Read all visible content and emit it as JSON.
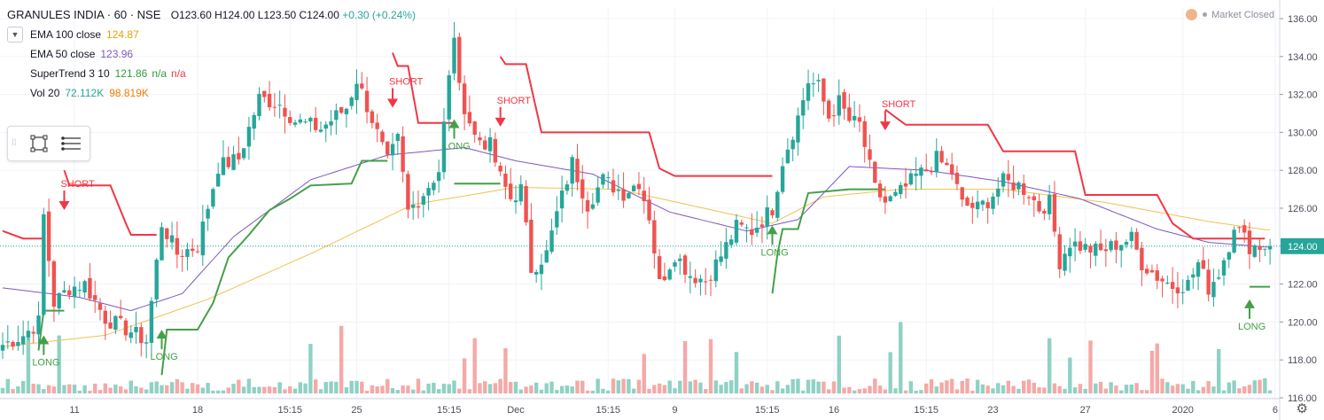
{
  "header": {
    "symbol": "GRANULES INDIA · 60 · NSE",
    "ohlc": "O123.60  H124.00  L123.50  C124.00",
    "change": "+0.30 (+0.24%)"
  },
  "indicators": [
    {
      "name": "EMA 100 close",
      "value": "124.87",
      "color": "#e5a400"
    },
    {
      "name": "EMA 50 close",
      "value": "123.96",
      "color": "#7e57c2"
    },
    {
      "name": "SuperTrend 3 10",
      "value": "121.86",
      "extra": "n/a",
      "extra2": "n/a",
      "color": "#2e9d3a",
      "color2": "#f23645"
    },
    {
      "name": "Vol 20",
      "value": "72.112K",
      "value2": "98.819K",
      "color": "#26a69a",
      "color2": "#f57c00"
    }
  ],
  "market_status": "Market Closed",
  "colors": {
    "up": "#26a69a",
    "down": "#ef5350",
    "st_up": "#43a047",
    "st_down": "#f23645",
    "ema100": "#f2c14e",
    "ema50": "#7e57c2",
    "vol_up": "#8fd1c5",
    "vol_down": "#f5a9a7"
  },
  "chart_data": {
    "type": "candlestick",
    "y_ticks": [
      "116.00",
      "118.00",
      "120.00",
      "122.00",
      "124.00",
      "126.00",
      "128.00",
      "130.00",
      "132.00",
      "134.00",
      "136.00"
    ],
    "ylim": [
      116,
      136.5
    ],
    "x_ticks": [
      {
        "label": "11",
        "i": 14
      },
      {
        "label": "18",
        "i": 38
      },
      {
        "label": "15:15",
        "i": 56
      },
      {
        "label": "25",
        "i": 69
      },
      {
        "label": "15:15",
        "i": 87
      },
      {
        "label": "Dec",
        "i": 100
      },
      {
        "label": "15:15",
        "i": 118
      },
      {
        "label": "9",
        "i": 131
      },
      {
        "label": "15:15",
        "i": 149
      },
      {
        "label": "16",
        "i": 162
      },
      {
        "label": "15:15",
        "i": 180
      },
      {
        "label": "23",
        "i": 193
      },
      {
        "label": "27",
        "i": 211
      },
      {
        "label": "2020",
        "i": 230
      },
      {
        "label": "6",
        "i": 248
      }
    ],
    "last_price": "124.00",
    "anchors": [
      [
        0,
        118.8
      ],
      [
        4,
        119.3
      ],
      [
        7,
        120.0
      ],
      [
        8,
        125.6
      ],
      [
        10,
        121.0
      ],
      [
        13,
        121.8
      ],
      [
        16,
        122.0
      ],
      [
        20,
        120.2
      ],
      [
        25,
        119.5
      ],
      [
        28,
        119.0
      ],
      [
        31,
        125.2
      ],
      [
        34,
        123.6
      ],
      [
        38,
        124.0
      ],
      [
        42,
        128.2
      ],
      [
        46,
        128.6
      ],
      [
        50,
        131.8
      ],
      [
        54,
        131.5
      ],
      [
        57,
        130.6
      ],
      [
        62,
        130.2
      ],
      [
        67,
        131.3
      ],
      [
        69,
        132.8
      ],
      [
        72,
        130.7
      ],
      [
        75,
        128.4
      ],
      [
        77,
        129.6
      ],
      [
        79,
        125.8
      ],
      [
        82,
        126.8
      ],
      [
        85,
        128.0
      ],
      [
        88,
        135.2
      ],
      [
        89,
        132.2
      ],
      [
        92,
        129.8
      ],
      [
        95,
        129.3
      ],
      [
        97,
        127.6
      ],
      [
        99,
        126.5
      ],
      [
        101,
        127.0
      ],
      [
        103,
        122.8
      ],
      [
        106,
        123.6
      ],
      [
        108,
        125.7
      ],
      [
        111,
        128.4
      ],
      [
        114,
        126.2
      ],
      [
        117,
        127.5
      ],
      [
        121,
        126.8
      ],
      [
        124,
        127.4
      ],
      [
        126,
        125.6
      ],
      [
        128,
        122.0
      ],
      [
        131,
        123.6
      ],
      [
        134,
        122.5
      ],
      [
        137,
        122.2
      ],
      [
        140,
        123.5
      ],
      [
        143,
        125.0
      ],
      [
        146,
        124.8
      ],
      [
        148,
        125.4
      ],
      [
        150,
        126.0
      ],
      [
        152,
        128.5
      ],
      [
        155,
        130.8
      ],
      [
        157,
        132.7
      ],
      [
        159,
        132.4
      ],
      [
        161,
        130.8
      ],
      [
        163,
        131.6
      ],
      [
        165,
        130.6
      ],
      [
        167,
        130.4
      ],
      [
        170,
        127.0
      ],
      [
        172,
        126.3
      ],
      [
        174,
        126.6
      ],
      [
        176,
        127.1
      ],
      [
        178,
        127.7
      ],
      [
        180,
        128.0
      ],
      [
        182,
        128.6
      ],
      [
        185,
        127.9
      ],
      [
        187,
        126.2
      ],
      [
        190,
        126.0
      ],
      [
        192,
        126.4
      ],
      [
        195,
        127.4
      ],
      [
        198,
        127.2
      ],
      [
        200,
        126.8
      ],
      [
        202,
        126.0
      ],
      [
        204,
        126.3
      ],
      [
        206,
        123.2
      ],
      [
        208,
        124.2
      ],
      [
        211,
        123.9
      ],
      [
        214,
        123.7
      ],
      [
        217,
        124.1
      ],
      [
        220,
        124.4
      ],
      [
        222,
        123.1
      ],
      [
        225,
        122.4
      ],
      [
        228,
        121.9
      ],
      [
        231,
        122.0
      ],
      [
        233,
        123.1
      ],
      [
        235,
        121.8
      ],
      [
        237,
        122.6
      ],
      [
        239,
        124.1
      ],
      [
        240,
        125.2
      ],
      [
        242,
        124.4
      ],
      [
        243,
        124.0
      ]
    ],
    "ema100_anchors": [
      [
        0,
        118.7
      ],
      [
        20,
        119.3
      ],
      [
        40,
        121.2
      ],
      [
        60,
        123.6
      ],
      [
        80,
        126.2
      ],
      [
        100,
        127.1
      ],
      [
        120,
        127.0
      ],
      [
        140,
        125.8
      ],
      [
        150,
        125.2
      ],
      [
        160,
        126.6
      ],
      [
        175,
        127.0
      ],
      [
        195,
        127.0
      ],
      [
        215,
        126.3
      ],
      [
        235,
        125.3
      ],
      [
        246,
        124.87
      ]
    ],
    "ema50_anchors": [
      [
        0,
        121.8
      ],
      [
        15,
        121.3
      ],
      [
        25,
        120.6
      ],
      [
        35,
        121.5
      ],
      [
        45,
        124.5
      ],
      [
        60,
        127.5
      ],
      [
        75,
        128.8
      ],
      [
        90,
        129.2
      ],
      [
        100,
        128.5
      ],
      [
        115,
        127.8
      ],
      [
        130,
        125.8
      ],
      [
        145,
        124.8
      ],
      [
        155,
        125.4
      ],
      [
        165,
        128.2
      ],
      [
        180,
        128.0
      ],
      [
        195,
        127.4
      ],
      [
        210,
        126.5
      ],
      [
        225,
        124.9
      ],
      [
        235,
        124.2
      ],
      [
        246,
        123.96
      ]
    ],
    "supertrend_segments": [
      {
        "dir": "down",
        "points": [
          [
            0,
            124.8
          ],
          [
            4,
            124.4
          ],
          [
            7,
            124.4
          ],
          [
            8,
            124.4
          ]
        ]
      },
      {
        "dir": "up",
        "points": [
          [
            7,
            118.5
          ],
          [
            8,
            120.6
          ],
          [
            12,
            120.6
          ]
        ]
      },
      {
        "dir": "down",
        "points": [
          [
            12,
            128.0
          ],
          [
            13,
            127.2
          ],
          [
            21,
            127.2
          ],
          [
            24,
            125.2
          ],
          [
            25,
            124.6
          ],
          [
            30,
            124.6
          ]
        ]
      },
      {
        "dir": "up",
        "points": [
          [
            31,
            117.2
          ],
          [
            32,
            119.6
          ],
          [
            38,
            119.6
          ],
          [
            41,
            121.0
          ],
          [
            44,
            123.4
          ],
          [
            48,
            124.6
          ],
          [
            52,
            125.9
          ],
          [
            56,
            126.5
          ],
          [
            60,
            127.2
          ],
          [
            68,
            127.3
          ],
          [
            70,
            128.5
          ],
          [
            75,
            128.5
          ]
        ]
      },
      {
        "dir": "down",
        "points": [
          [
            76,
            134.2
          ],
          [
            77,
            133.5
          ],
          [
            79,
            133.5
          ],
          [
            81,
            130.5
          ],
          [
            88,
            130.5
          ]
        ]
      },
      {
        "dir": "up",
        "points": [
          [
            88,
            127.3
          ],
          [
            90,
            127.3
          ],
          [
            97,
            127.3
          ]
        ]
      },
      {
        "dir": "down",
        "points": [
          [
            97,
            134.0
          ],
          [
            98,
            133.6
          ],
          [
            102,
            133.6
          ],
          [
            105,
            130.0
          ],
          [
            126,
            130.0
          ],
          [
            128,
            128.1
          ],
          [
            131,
            127.7
          ],
          [
            150,
            127.7
          ]
        ]
      },
      {
        "dir": "up",
        "points": [
          [
            150,
            121.5
          ],
          [
            151,
            123.6
          ],
          [
            152,
            124.9
          ],
          [
            155,
            124.9
          ],
          [
            157,
            126.8
          ],
          [
            165,
            127.0
          ],
          [
            172,
            127.0
          ]
        ]
      },
      {
        "dir": "down",
        "points": [
          [
            172,
            131.2
          ],
          [
            174,
            130.8
          ],
          [
            176,
            130.4
          ],
          [
            192,
            130.4
          ],
          [
            195,
            129.0
          ],
          [
            209,
            129.0
          ],
          [
            211,
            126.7
          ],
          [
            225,
            126.7
          ],
          [
            228,
            125.2
          ],
          [
            232,
            124.4
          ],
          [
            246,
            124.4
          ]
        ]
      },
      {
        "dir": "up",
        "points": [
          [
            243,
            121.86
          ],
          [
            247,
            121.86
          ]
        ]
      }
    ],
    "signals": [
      {
        "type": "SHORT",
        "i": 12,
        "price": 126.0
      },
      {
        "type": "LONG",
        "i": 8,
        "price": 119.2
      },
      {
        "type": "LONG",
        "i": 31,
        "price": 119.5
      },
      {
        "type": "SHORT",
        "i": 76,
        "price": 131.4
      },
      {
        "type": "LONG",
        "i": 88,
        "price": 130.6
      },
      {
        "type": "SHORT",
        "i": 97,
        "price": 130.4
      },
      {
        "type": "LONG",
        "i": 150,
        "price": 125.0
      },
      {
        "type": "SHORT",
        "i": 172,
        "price": 130.2
      },
      {
        "type": "LONG",
        "i": 243,
        "price": 121.1
      }
    ]
  }
}
